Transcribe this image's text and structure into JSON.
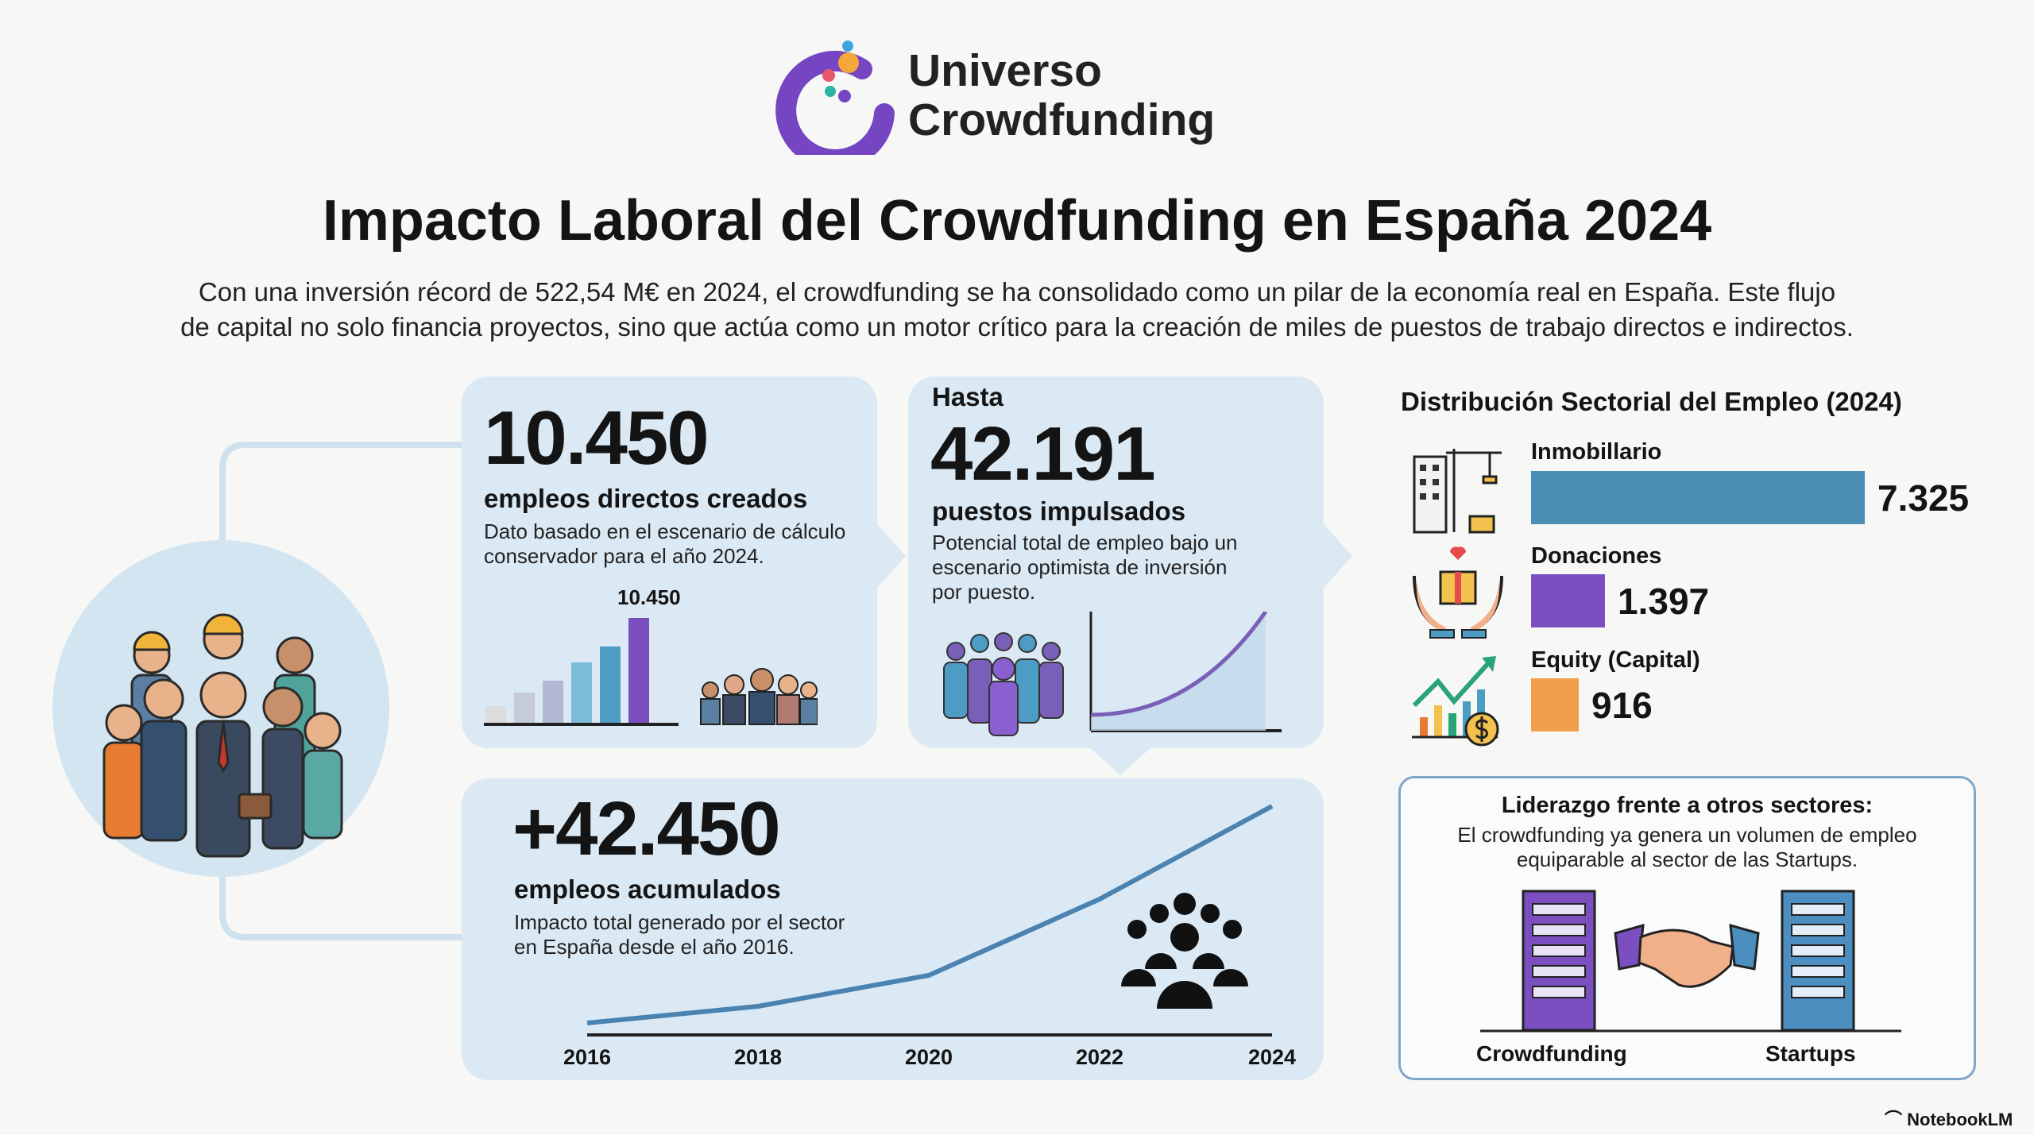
{
  "brand": {
    "name_line1": "Universo",
    "name_line2": "Crowdfunding"
  },
  "title": "Impacto Laboral del Crowdfunding en España 2024",
  "intro": [
    "Con una inversión récord de 522,54 M€ en 2024, el crowdfunding se ha consolidado como un pilar de la economía real en España. Este flujo",
    "de capital no solo financia proyectos, sino que actúa como un motor crítico para la creación de miles de puestos de trabajo directos e indirectos."
  ],
  "card_direct": {
    "value": "10.450",
    "label": "empleos directos creados",
    "desc": [
      "Dato basado en el escenario de cálculo",
      "conservador para el año 2024."
    ],
    "bar_label": "10.450"
  },
  "card_potential": {
    "prefix": "Hasta",
    "value": "42.191",
    "label": "puestos impulsados",
    "desc": [
      "Potencial total de empleo bajo un",
      "escenario optimista de inversión",
      "por puesto."
    ]
  },
  "card_cumulative": {
    "value": "+42.450",
    "label": "empleos acumulados",
    "desc": [
      "Impacto total generado por el sector",
      "en España desde el año 2016."
    ],
    "years": [
      "2016",
      "2018",
      "2020",
      "2022",
      "2024"
    ]
  },
  "chart_data": {
    "type": "bar",
    "title": "Distribución Sectorial del Empleo (2024)",
    "categories": [
      "Inmobillario",
      "Donaciones",
      "Equity (Capital)"
    ],
    "values": [
      7325,
      1397,
      916
    ],
    "value_labels": [
      "7.325",
      "1.397",
      "916"
    ],
    "colors": [
      "#4a8db5",
      "#7b4fbf",
      "#f0a04b"
    ]
  },
  "leadership": {
    "title": "Liderazgo frente a otros sectores:",
    "desc": [
      "El crowdfunding ya genera un volumen de empleo",
      "equiparable al sector de las Startups."
    ],
    "left": "Crowdfunding",
    "right": "Startups"
  },
  "footer": {
    "brand": "NotebookLM"
  }
}
